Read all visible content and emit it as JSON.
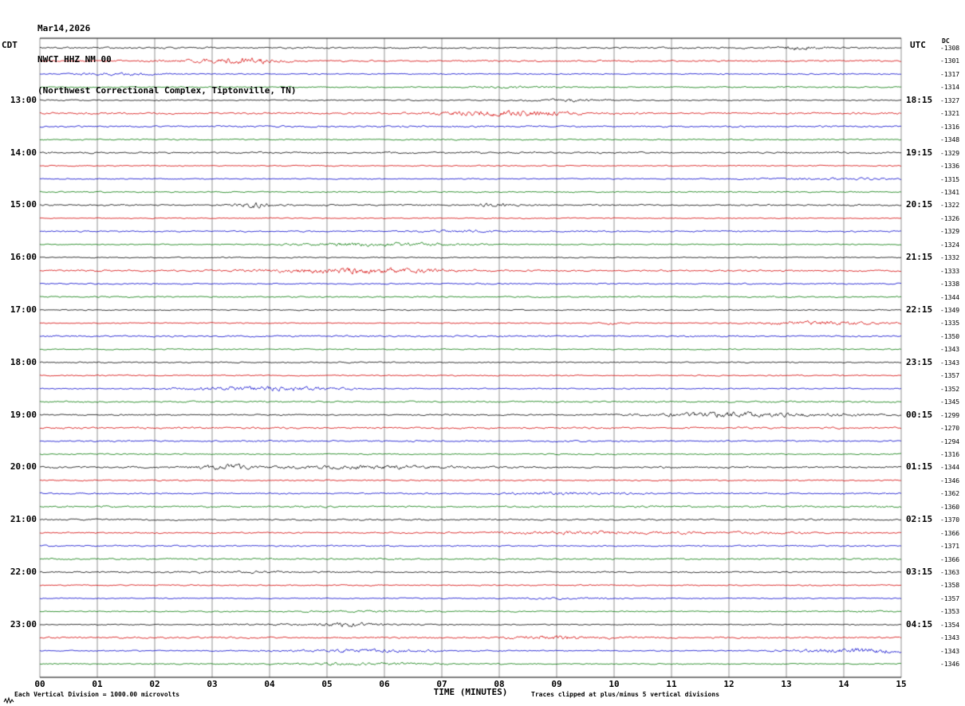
{
  "header": {
    "date": "Mar14,2026",
    "station": "NWCT HHZ NM 00",
    "location": "(Northwest Correctional Complex, Tiptonville, TN)",
    "left_tz": "CDT",
    "right_tz": "UTC",
    "dc_header": "DC"
  },
  "footer": {
    "left": "Each Vertical Division = 1000.00 microvolts",
    "xlabel": "TIME (MINUTES)",
    "right": "Traces clipped at plus/minus 5 vertical divisions"
  },
  "chart_data": {
    "type": "line",
    "title": "NWCT HHZ NM 00 helicorder — Mar14,2026 (Northwest Correctional Complex, Tiptonville, TN)",
    "xlabel": "TIME (MINUTES)",
    "x_range": [
      0,
      15
    ],
    "x_ticks": [
      "00",
      "01",
      "02",
      "03",
      "04",
      "05",
      "06",
      "07",
      "08",
      "09",
      "10",
      "11",
      "12",
      "13",
      "14",
      "15"
    ],
    "grid": true,
    "minutes_per_row": 15,
    "rows_total": 48,
    "trace_colors": {
      "black": "#000000",
      "red": "#d40000",
      "blue": "#0000cc",
      "green": "#007700"
    },
    "rows": [
      {
        "color": "black",
        "dc": "-1308",
        "cdt": null,
        "utc": null
      },
      {
        "color": "red",
        "dc": "-1301",
        "cdt": null,
        "utc": null
      },
      {
        "color": "blue",
        "dc": "-1317",
        "cdt": null,
        "utc": null
      },
      {
        "color": "green",
        "dc": "-1314",
        "cdt": null,
        "utc": null
      },
      {
        "color": "black",
        "dc": "-1327",
        "cdt": "13:00",
        "utc": "18:15"
      },
      {
        "color": "red",
        "dc": "-1321",
        "cdt": null,
        "utc": null
      },
      {
        "color": "blue",
        "dc": "-1316",
        "cdt": null,
        "utc": null
      },
      {
        "color": "green",
        "dc": "-1348",
        "cdt": null,
        "utc": null
      },
      {
        "color": "black",
        "dc": "-1329",
        "cdt": "14:00",
        "utc": "19:15"
      },
      {
        "color": "red",
        "dc": "-1336",
        "cdt": null,
        "utc": null
      },
      {
        "color": "blue",
        "dc": "-1315",
        "cdt": null,
        "utc": null
      },
      {
        "color": "green",
        "dc": "-1341",
        "cdt": null,
        "utc": null
      },
      {
        "color": "black",
        "dc": "-1322",
        "cdt": "15:00",
        "utc": "20:15"
      },
      {
        "color": "red",
        "dc": "-1326",
        "cdt": null,
        "utc": null
      },
      {
        "color": "blue",
        "dc": "-1329",
        "cdt": null,
        "utc": null
      },
      {
        "color": "green",
        "dc": "-1324",
        "cdt": null,
        "utc": null
      },
      {
        "color": "black",
        "dc": "-1332",
        "cdt": "16:00",
        "utc": "21:15"
      },
      {
        "color": "red",
        "dc": "-1333",
        "cdt": null,
        "utc": null
      },
      {
        "color": "blue",
        "dc": "-1338",
        "cdt": null,
        "utc": null
      },
      {
        "color": "green",
        "dc": "-1344",
        "cdt": null,
        "utc": null
      },
      {
        "color": "black",
        "dc": "-1349",
        "cdt": "17:00",
        "utc": "22:15"
      },
      {
        "color": "red",
        "dc": "-1335",
        "cdt": null,
        "utc": null
      },
      {
        "color": "blue",
        "dc": "-1350",
        "cdt": null,
        "utc": null
      },
      {
        "color": "green",
        "dc": "-1343",
        "cdt": null,
        "utc": null
      },
      {
        "color": "black",
        "dc": "-1343",
        "cdt": "18:00",
        "utc": "23:15"
      },
      {
        "color": "red",
        "dc": "-1357",
        "cdt": null,
        "utc": null
      },
      {
        "color": "blue",
        "dc": "-1352",
        "cdt": null,
        "utc": null
      },
      {
        "color": "green",
        "dc": "-1345",
        "cdt": null,
        "utc": null
      },
      {
        "color": "black",
        "dc": "-1299",
        "cdt": "19:00",
        "utc": "00:15"
      },
      {
        "color": "red",
        "dc": "-1270",
        "cdt": null,
        "utc": null
      },
      {
        "color": "blue",
        "dc": "-1294",
        "cdt": null,
        "utc": null
      },
      {
        "color": "green",
        "dc": "-1316",
        "cdt": null,
        "utc": null
      },
      {
        "color": "black",
        "dc": "-1344",
        "cdt": "20:00",
        "utc": "01:15"
      },
      {
        "color": "red",
        "dc": "-1346",
        "cdt": null,
        "utc": null
      },
      {
        "color": "blue",
        "dc": "-1362",
        "cdt": null,
        "utc": null
      },
      {
        "color": "green",
        "dc": "-1360",
        "cdt": null,
        "utc": null
      },
      {
        "color": "black",
        "dc": "-1370",
        "cdt": "21:00",
        "utc": "02:15"
      },
      {
        "color": "red",
        "dc": "-1366",
        "cdt": null,
        "utc": null
      },
      {
        "color": "blue",
        "dc": "-1371",
        "cdt": null,
        "utc": null
      },
      {
        "color": "green",
        "dc": "-1366",
        "cdt": null,
        "utc": null
      },
      {
        "color": "black",
        "dc": "-1363",
        "cdt": "22:00",
        "utc": "03:15"
      },
      {
        "color": "red",
        "dc": "-1358",
        "cdt": null,
        "utc": null
      },
      {
        "color": "blue",
        "dc": "-1357",
        "cdt": null,
        "utc": null
      },
      {
        "color": "green",
        "dc": "-1353",
        "cdt": null,
        "utc": null
      },
      {
        "color": "black",
        "dc": "-1354",
        "cdt": "23:00",
        "utc": "04:15"
      },
      {
        "color": "red",
        "dc": "-1343",
        "cdt": null,
        "utc": null
      },
      {
        "color": "blue",
        "dc": "-1343",
        "cdt": null,
        "utc": null
      },
      {
        "color": "green",
        "dc": "-1346",
        "cdt": null,
        "utc": null
      }
    ]
  }
}
